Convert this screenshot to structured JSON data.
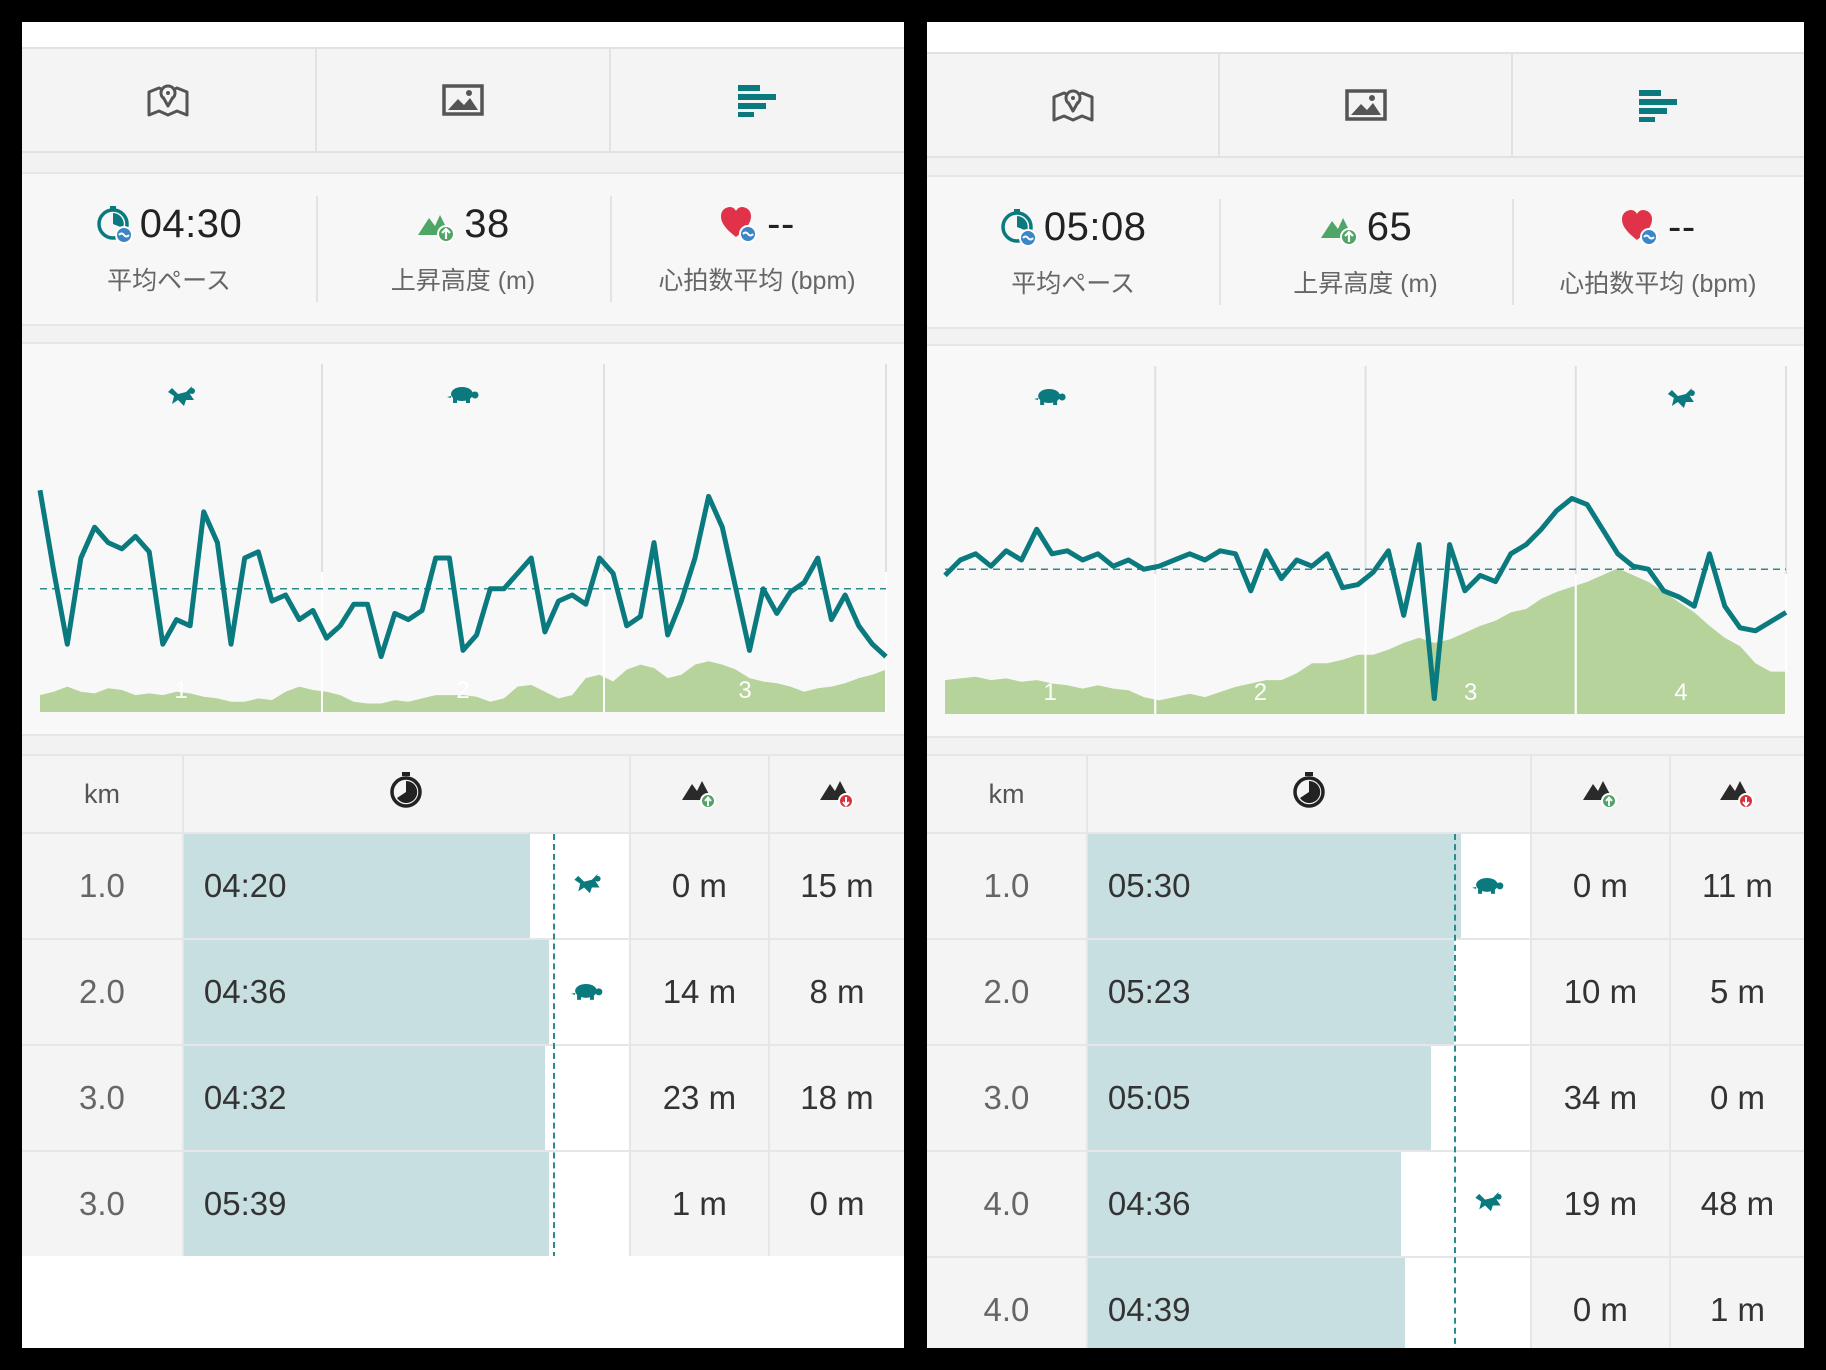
{
  "panels": [
    {
      "tabs": [
        {
          "icon": "map-icon",
          "active": false
        },
        {
          "icon": "image-icon",
          "active": false
        },
        {
          "icon": "bar-chart-icon",
          "active": true
        }
      ],
      "stats": [
        {
          "icon": "pace-icon",
          "value": "04:30",
          "label": "平均ペース"
        },
        {
          "icon": "elevation-gain-icon",
          "value": "38",
          "label": "上昇高度 (m)"
        },
        {
          "icon": "heart-rate-icon",
          "value": "--",
          "label": "心拍数平均 (bpm)"
        }
      ],
      "chart_data": {
        "type": "line",
        "series": [
          {
            "values": [
              0.72,
              0.46,
              0.22,
              0.5,
              0.6,
              0.55,
              0.53,
              0.57,
              0.52,
              0.22,
              0.3,
              0.28,
              0.65,
              0.55,
              0.22,
              0.5,
              0.52,
              0.36,
              0.38,
              0.3,
              0.33,
              0.24,
              0.28,
              0.35,
              0.35,
              0.18,
              0.32,
              0.3,
              0.33,
              0.5,
              0.5,
              0.2,
              0.25,
              0.4,
              0.4,
              0.45,
              0.5,
              0.26,
              0.36,
              0.38,
              0.35,
              0.5,
              0.45,
              0.28,
              0.31,
              0.55,
              0.25,
              0.36,
              0.5,
              0.7,
              0.6,
              0.4,
              0.2,
              0.4,
              0.32,
              0.39,
              0.42,
              0.5,
              0.3,
              0.38,
              0.28,
              0.22,
              0.18
            ]
          },
          {
            "values": [
              0.1,
              0.12,
              0.15,
              0.12,
              0.11,
              0.14,
              0.13,
              0.1,
              0.11,
              0.1,
              0.12,
              0.11,
              0.09,
              0.08,
              0.06,
              0.06,
              0.08,
              0.07,
              0.12,
              0.15,
              0.13,
              0.12,
              0.1,
              0.06,
              0.05,
              0.05,
              0.07,
              0.06,
              0.08,
              0.1,
              0.1,
              0.1,
              0.09,
              0.06,
              0.08,
              0.15,
              0.16,
              0.12,
              0.08,
              0.1,
              0.2,
              0.22,
              0.18,
              0.25,
              0.28,
              0.26,
              0.2,
              0.22,
              0.28,
              0.3,
              0.28,
              0.25,
              0.2,
              0.18,
              0.17,
              0.15,
              0.12,
              0.14,
              0.15,
              0.17,
              0.2,
              0.22,
              0.25
            ]
          }
        ],
        "average": 0.4,
        "km_labels": [
          "1",
          "2",
          "3"
        ],
        "turtle_markers": [
          {
            "type": "fast",
            "km": 0.5
          },
          {
            "type": "slow",
            "km": 1.5
          }
        ]
      },
      "splits": {
        "headers": {
          "km": "km",
          "time_icon": "stopwatch-icon",
          "up_icon": "elevation-up-icon",
          "down_icon": "elevation-down-icon"
        },
        "rows": [
          {
            "km": "1.0",
            "pace": "04:20",
            "pace_pct": 0.92,
            "turtle": "fast",
            "up": "0 m",
            "down": "15 m"
          },
          {
            "km": "2.0",
            "pace": "04:36",
            "pace_pct": 0.97,
            "turtle": "slow",
            "up": "14 m",
            "down": "8 m"
          },
          {
            "km": "3.0",
            "pace": "04:32",
            "pace_pct": 0.96,
            "turtle": "",
            "up": "23 m",
            "down": "18 m"
          },
          {
            "km": "3.0",
            "pace": "05:39",
            "pace_pct": 0.97,
            "turtle": "",
            "up": "1 m",
            "down": "0 m"
          }
        ]
      }
    },
    {
      "tabs": [
        {
          "icon": "map-icon",
          "active": false
        },
        {
          "icon": "image-icon",
          "active": false
        },
        {
          "icon": "bar-chart-icon",
          "active": true
        }
      ],
      "stats": [
        {
          "icon": "pace-icon",
          "value": "05:08",
          "label": "平均ペース"
        },
        {
          "icon": "elevation-gain-icon",
          "value": "65",
          "label": "上昇高度 (m)"
        },
        {
          "icon": "heart-rate-icon",
          "value": "--",
          "label": "心拍数平均 (bpm)"
        }
      ],
      "chart_data": {
        "type": "line",
        "series": [
          {
            "values": [
              0.45,
              0.5,
              0.52,
              0.48,
              0.53,
              0.5,
              0.6,
              0.52,
              0.53,
              0.5,
              0.52,
              0.48,
              0.5,
              0.47,
              0.48,
              0.5,
              0.52,
              0.5,
              0.53,
              0.52,
              0.4,
              0.53,
              0.44,
              0.5,
              0.48,
              0.52,
              0.41,
              0.42,
              0.46,
              0.53,
              0.32,
              0.55,
              0.05,
              0.55,
              0.4,
              0.45,
              0.43,
              0.52,
              0.55,
              0.6,
              0.66,
              0.7,
              0.68,
              0.6,
              0.52,
              0.48,
              0.47,
              0.4,
              0.38,
              0.35,
              0.52,
              0.35,
              0.28,
              0.27,
              0.3,
              0.33
            ]
          },
          {
            "values": [
              0.2,
              0.21,
              0.22,
              0.2,
              0.21,
              0.19,
              0.2,
              0.18,
              0.17,
              0.15,
              0.17,
              0.15,
              0.14,
              0.1,
              0.08,
              0.1,
              0.12,
              0.1,
              0.13,
              0.16,
              0.18,
              0.2,
              0.2,
              0.24,
              0.3,
              0.3,
              0.32,
              0.35,
              0.35,
              0.38,
              0.42,
              0.45,
              0.42,
              0.44,
              0.48,
              0.52,
              0.55,
              0.6,
              0.62,
              0.68,
              0.72,
              0.75,
              0.78,
              0.82,
              0.86,
              0.82,
              0.78,
              0.72,
              0.66,
              0.6,
              0.52,
              0.45,
              0.4,
              0.3,
              0.25,
              0.25
            ]
          }
        ],
        "average": 0.47,
        "km_labels": [
          "1",
          "2",
          "3",
          "4"
        ],
        "turtle_markers": [
          {
            "type": "slow",
            "km": 0.5
          },
          {
            "type": "fast",
            "km": 3.5
          }
        ]
      },
      "splits": {
        "headers": {
          "km": "km",
          "time_icon": "stopwatch-icon",
          "up_icon": "elevation-up-icon",
          "down_icon": "elevation-down-icon"
        },
        "rows": [
          {
            "km": "1.0",
            "pace": "05:30",
            "pace_pct": 1.0,
            "turtle": "slow",
            "up": "0 m",
            "down": "11 m"
          },
          {
            "km": "2.0",
            "pace": "05:23",
            "pace_pct": 0.98,
            "turtle": "",
            "up": "10 m",
            "down": "5 m"
          },
          {
            "km": "3.0",
            "pace": "05:05",
            "pace_pct": 0.92,
            "turtle": "",
            "up": "34 m",
            "down": "0 m"
          },
          {
            "km": "4.0",
            "pace": "04:36",
            "pace_pct": 0.84,
            "turtle": "fast",
            "up": "19 m",
            "down": "48 m"
          },
          {
            "km": "4.0",
            "pace": "04:39",
            "pace_pct": 0.85,
            "turtle": "",
            "up": "0 m",
            "down": "1 m"
          }
        ]
      }
    }
  ],
  "colors": {
    "teal": "#0b7a7f",
    "elevation": "#b5d39a",
    "pacebar": "#c8dfe2",
    "heart": "#e0334a",
    "gain": "#4ea566",
    "loss": "#d8323d"
  }
}
